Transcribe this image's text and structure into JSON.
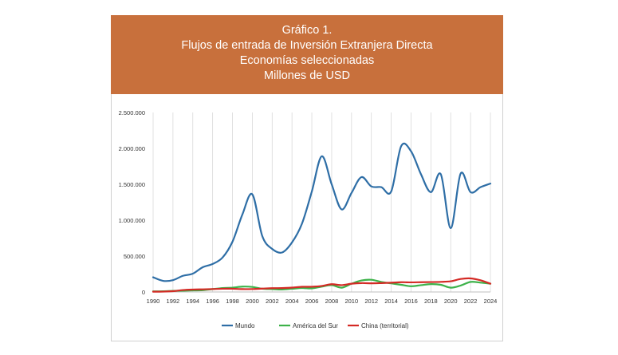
{
  "header": {
    "title_line1": "Gráfico 1.",
    "title_line2": "Flujos de entrada de Inversión Extranjera Directa",
    "title_line3": "Economías seleccionadas",
    "title_line4": "Millones de USD"
  },
  "chart_data": {
    "type": "line",
    "title": "Flujos de entrada de Inversión Extranjera Directa",
    "subtitle": "Economías seleccionadas - Millones de USD",
    "ylim": [
      0,
      2500000
    ],
    "y_ticks": [
      0,
      500000,
      1000000,
      1500000,
      2000000,
      2500000
    ],
    "y_tick_labels": [
      "0",
      "500.000",
      "1.000.000",
      "1.500.000",
      "2.000.000",
      "2.500.000"
    ],
    "xlim": [
      1990,
      2024
    ],
    "x_ticks": [
      1990,
      1992,
      1994,
      1996,
      1998,
      2000,
      2002,
      2004,
      2006,
      2008,
      2010,
      2012,
      2014,
      2016,
      2018,
      2020,
      2022,
      2024
    ],
    "x_tick_labels": [
      "1990",
      "1992",
      "1994",
      "1996",
      "1998",
      "2000",
      "2002",
      "2004",
      "2006",
      "2008",
      "2010",
      "2012",
      "2014",
      "2016",
      "2018",
      "2020",
      "2022",
      "2024"
    ],
    "grid": "vertical",
    "legend_position": "bottom",
    "x": [
      1990,
      1991,
      1992,
      1993,
      1994,
      1995,
      1996,
      1997,
      1998,
      1999,
      2000,
      2001,
      2002,
      2003,
      2004,
      2005,
      2006,
      2007,
      2008,
      2009,
      2010,
      2011,
      2012,
      2013,
      2014,
      2015,
      2016,
      2017,
      2018,
      2019,
      2020,
      2021,
      2022,
      2023,
      2024
    ],
    "series": [
      {
        "name": "Mundo",
        "color": "#2e6ea6",
        "values": [
          205000,
          155000,
          165000,
          225000,
          255000,
          345000,
          390000,
          480000,
          700000,
          1080000,
          1360000,
          780000,
          600000,
          550000,
          690000,
          950000,
          1400000,
          1890000,
          1500000,
          1150000,
          1380000,
          1600000,
          1470000,
          1460000,
          1400000,
          2030000,
          1960000,
          1640000,
          1390000,
          1640000,
          890000,
          1650000,
          1390000,
          1460000,
          1510000
        ]
      },
      {
        "name": "América del Sur",
        "color": "#3db24a",
        "values": [
          8000,
          10000,
          15000,
          18000,
          22000,
          25000,
          40000,
          55000,
          60000,
          75000,
          70000,
          45000,
          40000,
          35000,
          45000,
          55000,
          50000,
          75000,
          95000,
          60000,
          115000,
          160000,
          170000,
          140000,
          120000,
          100000,
          80000,
          95000,
          110000,
          100000,
          60000,
          90000,
          140000,
          130000,
          115000
        ]
      },
      {
        "name": "China (territorial)",
        "color": "#d42a25",
        "values": [
          4000,
          5000,
          11000,
          27000,
          34000,
          37000,
          41000,
          45000,
          45000,
          40000,
          41000,
          47000,
          53000,
          54000,
          61000,
          72000,
          73000,
          84000,
          108000,
          95000,
          115000,
          124000,
          121000,
          124000,
          129000,
          136000,
          134000,
          136000,
          138000,
          141000,
          149000,
          181000,
          189000,
          163000,
          116000
        ]
      }
    ]
  }
}
